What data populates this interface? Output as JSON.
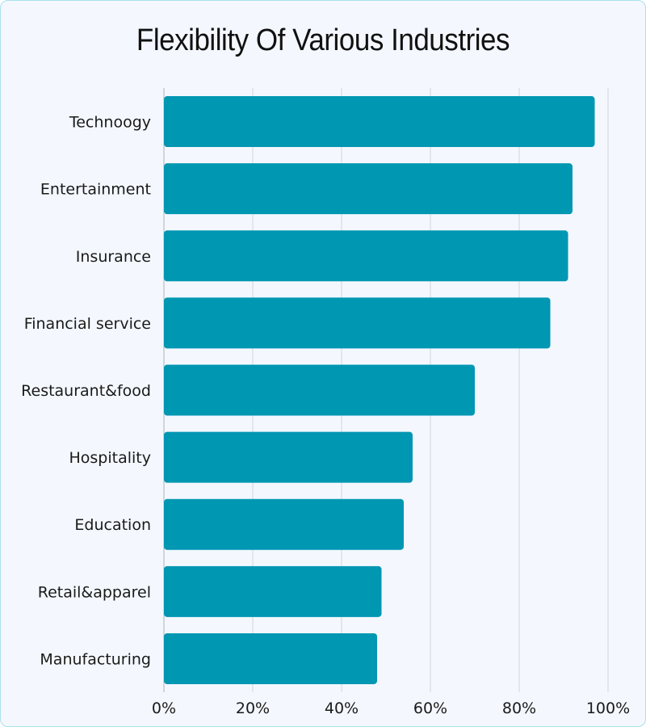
{
  "chart_data": {
    "type": "bar",
    "orientation": "horizontal",
    "title": "Flexibility Of Various Industries",
    "categories": [
      "Technoogy",
      "Entertainment",
      "Insurance",
      "Financial service",
      "Restaurant&food",
      "Hospitality",
      "Education",
      "Retail&apparel",
      "Manufacturing"
    ],
    "values": [
      97,
      92,
      91,
      87,
      70,
      56,
      54,
      49,
      48
    ],
    "xlim": [
      0,
      100
    ],
    "xticks": [
      0,
      20,
      40,
      60,
      80,
      100
    ],
    "xtick_labels": [
      "0%",
      "20%",
      "40%",
      "60%",
      "80%",
      "100%"
    ],
    "xlabel": "",
    "ylabel": "",
    "grid": "vertical",
    "bar_color": "#0097b2"
  }
}
